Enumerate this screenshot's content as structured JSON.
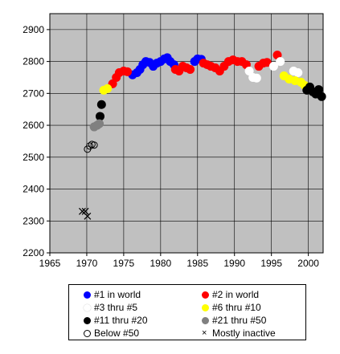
{
  "chart_data": {
    "type": "scatter",
    "xlim": [
      1965,
      2002
    ],
    "ylim": [
      2200,
      2950
    ],
    "x_ticks": [
      1965,
      1970,
      1975,
      1980,
      1985,
      1990,
      1995,
      2000
    ],
    "y_ticks": [
      2200,
      2300,
      2400,
      2500,
      2600,
      2700,
      2800,
      2900
    ],
    "plot_background": "#c0c0c0",
    "grid": true,
    "legend_placement": "bottom",
    "series": [
      {
        "name": "#1 in world",
        "color": "#0000ff",
        "marker": "filled-circle",
        "points": [
          [
            1976.2,
            2758
          ],
          [
            1976.8,
            2765
          ],
          [
            1977.2,
            2775
          ],
          [
            1977.6,
            2790
          ],
          [
            1978.0,
            2800
          ],
          [
            1978.5,
            2797
          ],
          [
            1979.0,
            2785
          ],
          [
            1979.5,
            2795
          ],
          [
            1980.0,
            2800
          ],
          [
            1980.5,
            2808
          ],
          [
            1980.9,
            2812
          ],
          [
            1981.3,
            2800
          ],
          [
            1981.8,
            2790
          ],
          [
            1984.6,
            2800
          ],
          [
            1985.0,
            2808
          ],
          [
            1985.5,
            2807
          ]
        ]
      },
      {
        "name": "#2 in world",
        "color": "#ff0000",
        "marker": "filled-circle",
        "points": [
          [
            1973.5,
            2730
          ],
          [
            1974.0,
            2750
          ],
          [
            1974.4,
            2765
          ],
          [
            1975.0,
            2770
          ],
          [
            1975.5,
            2768
          ],
          [
            1982.0,
            2775
          ],
          [
            1982.5,
            2770
          ],
          [
            1983.0,
            2785
          ],
          [
            1983.5,
            2780
          ],
          [
            1984.0,
            2775
          ],
          [
            1985.8,
            2795
          ],
          [
            1986.3,
            2790
          ],
          [
            1986.8,
            2785
          ],
          [
            1987.4,
            2780
          ],
          [
            1988.0,
            2770
          ],
          [
            1988.6,
            2785
          ],
          [
            1989.2,
            2800
          ],
          [
            1989.8,
            2805
          ],
          [
            1990.4,
            2800
          ],
          [
            1991.0,
            2800
          ],
          [
            1991.6,
            2790
          ],
          [
            1993.3,
            2785
          ],
          [
            1993.9,
            2795
          ],
          [
            1994.4,
            2797
          ],
          [
            1995.8,
            2820
          ]
        ]
      },
      {
        "name": "#3 thru #5",
        "color": "#ffffff",
        "marker": "filled-circle",
        "points": [
          [
            1992.0,
            2770
          ],
          [
            1992.5,
            2750
          ],
          [
            1993.0,
            2748
          ],
          [
            1995.3,
            2785
          ],
          [
            1996.2,
            2800
          ],
          [
            1998.0,
            2770
          ],
          [
            1998.6,
            2765
          ]
        ]
      },
      {
        "name": "#6 thru #10",
        "color": "#ffff00",
        "marker": "filled-circle",
        "points": [
          [
            1972.3,
            2710
          ],
          [
            1972.8,
            2715
          ],
          [
            1996.7,
            2755
          ],
          [
            1997.4,
            2745
          ],
          [
            1998.2,
            2740
          ],
          [
            1999.0,
            2735
          ],
          [
            1999.5,
            2725
          ]
        ]
      },
      {
        "name": "#11 thru #20",
        "color": "#000000",
        "marker": "filled-circle",
        "points": [
          [
            1971.8,
            2628
          ],
          [
            1972.0,
            2665
          ],
          [
            1999.8,
            2710
          ],
          [
            2000.2,
            2720
          ],
          [
            2000.6,
            2705
          ],
          [
            2001.0,
            2698
          ],
          [
            2001.4,
            2712
          ],
          [
            2001.8,
            2690
          ]
        ]
      },
      {
        "name": "#21 thru #50",
        "color": "#808080",
        "marker": "filled-circle",
        "points": [
          [
            1971.0,
            2595
          ],
          [
            1971.4,
            2600
          ],
          [
            1971.7,
            2605
          ]
        ]
      },
      {
        "name": "Below #50",
        "color": "#000000",
        "marker": "open-circle",
        "points": [
          [
            1970.1,
            2525
          ],
          [
            1970.4,
            2535
          ],
          [
            1970.7,
            2540
          ],
          [
            1971.0,
            2538
          ]
        ]
      },
      {
        "name": "Mostly inactive",
        "color": "#000000",
        "marker": "x",
        "points": [
          [
            1969.4,
            2330
          ],
          [
            1969.8,
            2330
          ],
          [
            1970.1,
            2315
          ]
        ]
      }
    ]
  }
}
